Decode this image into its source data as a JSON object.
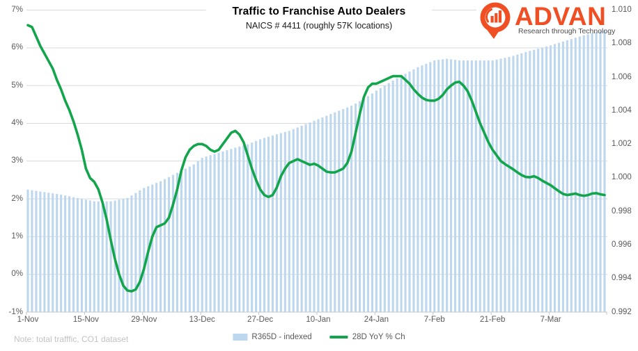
{
  "logo": {
    "wordmark": "ADVAN",
    "tagline": "Research through Technology",
    "orange": "#F04E23"
  },
  "note": "Note: total trafffic, CO1 dataset",
  "legend": [
    {
      "label": "R365D - indexed",
      "swatch": "bar-swatch",
      "color": "#BDD7EE"
    },
    {
      "label": "28D YoY % Ch",
      "swatch": "line-swatch",
      "color": "#12A54C"
    }
  ],
  "colors": {
    "bars": "#BDD7EE",
    "line": "#12A54C",
    "grid": "#D9D9D9",
    "axis_line": "#C6C6C6",
    "axis_text": "#595959",
    "note_text": "#C3C3C3",
    "logo_orange": "#F04E23"
  },
  "chart_data": {
    "type": "combo-bar-line",
    "title": "Traffic to Franchise Auto Dealers",
    "subtitle": "NAICS # 4411 (roughly 57K locations)",
    "grid": true,
    "legend_position": "bottom",
    "x": {
      "unit": "day",
      "days_total": 140,
      "start_label": "1-Nov",
      "tick_labels": [
        "1-Nov",
        "15-Nov",
        "29-Nov",
        "13-Dec",
        "27-Dec",
        "10-Jan",
        "24-Jan",
        "7-Feb",
        "21-Feb",
        "7-Mar"
      ],
      "tick_day_offsets": [
        0,
        14,
        28,
        42,
        56,
        70,
        84,
        98,
        112,
        126
      ]
    },
    "left_axis": {
      "series": "28D YoY % Ch",
      "tick_labels": [
        "7%",
        "6%",
        "5%",
        "4%",
        "3%",
        "2%",
        "1%",
        "0%",
        "-1%"
      ],
      "min": -1,
      "max": 7,
      "format": "percent"
    },
    "right_axis": {
      "series": "R365D - indexed",
      "tick_labels": [
        "1.010",
        "1.008",
        "1.006",
        "1.004",
        "1.002",
        "1.000",
        "0.998",
        "0.996",
        "0.994",
        "0.992"
      ],
      "min": 0.992,
      "max": 1.01
    },
    "series": [
      {
        "name": "R365D - indexed",
        "type": "bar",
        "axis": "right",
        "color": "#BDD7EE",
        "resolution": "daily, values linearly interpolated between anchor points (day_offset, value)",
        "anchors": {
          "d": [
            0,
            4,
            8,
            12,
            16,
            20,
            24,
            28,
            32,
            36,
            40,
            42,
            46,
            50,
            53,
            56,
            60,
            63,
            66,
            70,
            74,
            78,
            81,
            84,
            88,
            91,
            94,
            98,
            101,
            104,
            108,
            112,
            116,
            120,
            123,
            126,
            130,
            134,
            139
          ],
          "v": [
            0.9993,
            0.99915,
            0.999,
            0.9988,
            0.9986,
            0.9986,
            0.9988,
            0.9994,
            0.9998,
            1.0003,
            1.0008,
            1.0012,
            1.0015,
            1.0018,
            1.002,
            1.0023,
            1.0026,
            1.0028,
            1.0031,
            1.0035,
            1.0039,
            1.0043,
            1.0047,
            1.0052,
            1.0058,
            1.0062,
            1.0066,
            1.007,
            1.0071,
            1.007,
            1.007,
            1.007,
            1.0072,
            1.0075,
            1.0077,
            1.0079,
            1.0082,
            1.0085,
            1.0088
          ]
        }
      },
      {
        "name": "28D YoY % Ch",
        "type": "line",
        "axis": "left",
        "color": "#12A54C",
        "resolution": "daily, day 0 = 1-Nov",
        "values": [
          6.6,
          6.55,
          6.3,
          6.05,
          5.85,
          5.65,
          5.45,
          5.15,
          4.9,
          4.6,
          4.35,
          4.05,
          3.7,
          3.3,
          2.8,
          2.55,
          2.45,
          2.25,
          1.9,
          1.45,
          0.9,
          0.4,
          0.0,
          -0.3,
          -0.43,
          -0.45,
          -0.4,
          -0.2,
          0.15,
          0.6,
          1.0,
          1.25,
          1.3,
          1.35,
          1.5,
          1.85,
          2.25,
          2.75,
          3.1,
          3.3,
          3.4,
          3.45,
          3.45,
          3.4,
          3.3,
          3.25,
          3.3,
          3.45,
          3.6,
          3.75,
          3.8,
          3.7,
          3.5,
          3.15,
          2.8,
          2.5,
          2.25,
          2.1,
          2.05,
          2.1,
          2.3,
          2.6,
          2.8,
          2.95,
          3.0,
          3.05,
          3.0,
          2.95,
          2.9,
          2.93,
          2.88,
          2.8,
          2.72,
          2.7,
          2.7,
          2.75,
          2.8,
          2.95,
          3.25,
          3.75,
          4.25,
          4.7,
          4.95,
          5.05,
          5.05,
          5.1,
          5.15,
          5.2,
          5.25,
          5.25,
          5.25,
          5.15,
          5.05,
          4.9,
          4.78,
          4.68,
          4.62,
          4.6,
          4.6,
          4.65,
          4.75,
          4.9,
          5.0,
          5.08,
          5.1,
          5.0,
          4.85,
          4.6,
          4.3,
          4.0,
          3.75,
          3.5,
          3.3,
          3.15,
          3.0,
          2.92,
          2.85,
          2.78,
          2.7,
          2.63,
          2.58,
          2.57,
          2.6,
          2.55,
          2.48,
          2.42,
          2.36,
          2.28,
          2.2,
          2.13,
          2.1,
          2.12,
          2.14,
          2.1,
          2.08,
          2.1,
          2.14,
          2.15,
          2.12,
          2.1
        ]
      }
    ]
  }
}
